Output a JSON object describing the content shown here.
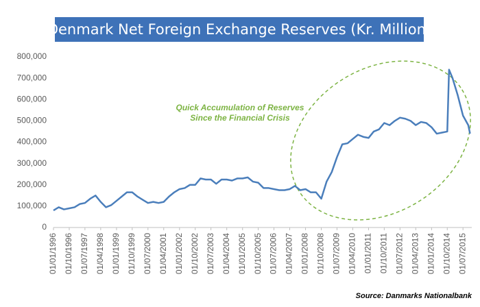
{
  "chart_data": {
    "type": "line",
    "title": "Denmark Net Foreign Exchange Reserves (Kr. Million)",
    "annotation": [
      "Quick Accumulation of Reserves",
      "Since the Financial Crisis"
    ],
    "source": "Source: Danmarks Nationalbank",
    "color": "#4a7ebb",
    "x": [
      "01/01/1996",
      "01/04/1996",
      "01/07/1996",
      "01/10/1996",
      "01/01/1997",
      "01/04/1997",
      "01/07/1997",
      "01/10/1997",
      "01/01/1998",
      "01/04/1998",
      "01/07/1998",
      "01/10/1998",
      "01/01/1999",
      "01/04/1999",
      "01/07/1999",
      "01/10/1999",
      "01/01/2000",
      "01/04/2000",
      "01/07/2000",
      "01/10/2000",
      "01/01/2001",
      "01/04/2001",
      "01/07/2001",
      "01/10/2001",
      "01/01/2002",
      "01/04/2002",
      "01/07/2002",
      "01/10/2002",
      "01/01/2003",
      "01/04/2003",
      "01/07/2003",
      "01/10/2003",
      "01/01/2004",
      "01/04/2004",
      "01/07/2004",
      "01/10/2004",
      "01/01/2005",
      "01/04/2005",
      "01/07/2005",
      "01/10/2005",
      "01/01/2006",
      "01/04/2006",
      "01/07/2006",
      "01/10/2006",
      "01/01/2007",
      "01/04/2007",
      "01/07/2007",
      "01/10/2007",
      "01/01/2008",
      "01/04/2008",
      "01/07/2008",
      "01/10/2008",
      "01/01/2009",
      "01/04/2009",
      "01/07/2009",
      "01/10/2009",
      "01/01/2010",
      "01/04/2010",
      "01/07/2010",
      "01/10/2010",
      "01/01/2011",
      "01/04/2011",
      "01/07/2011",
      "01/10/2011",
      "01/01/2012",
      "01/04/2012",
      "01/07/2012",
      "01/10/2012",
      "01/01/2013",
      "01/04/2013",
      "01/07/2013",
      "01/10/2013",
      "01/01/2014",
      "01/04/2014",
      "01/07/2014",
      "01/10/2014",
      "01/11/2014",
      "01/01/2015",
      "01/04/2015",
      "01/07/2015",
      "01/10/2015",
      "01/11/2015"
    ],
    "values": [
      80000,
      95000,
      85000,
      90000,
      95000,
      110000,
      115000,
      135000,
      150000,
      120000,
      95000,
      105000,
      125000,
      145000,
      165000,
      165000,
      145000,
      130000,
      115000,
      120000,
      115000,
      120000,
      145000,
      165000,
      180000,
      185000,
      200000,
      200000,
      230000,
      225000,
      225000,
      205000,
      225000,
      225000,
      220000,
      230000,
      230000,
      235000,
      215000,
      210000,
      185000,
      185000,
      180000,
      175000,
      175000,
      180000,
      195000,
      175000,
      180000,
      165000,
      165000,
      135000,
      215000,
      260000,
      330000,
      390000,
      395000,
      415000,
      435000,
      425000,
      420000,
      450000,
      460000,
      490000,
      480000,
      500000,
      515000,
      510000,
      500000,
      480000,
      495000,
      490000,
      470000,
      440000,
      445000,
      450000,
      740000,
      700000,
      620000,
      525000,
      480000,
      440000
    ],
    "xlim": [
      "01/01/1996",
      "01/12/2015"
    ],
    "xticks": [
      "01/01/1996",
      "01/10/1996",
      "01/07/1997",
      "01/04/1998",
      "01/01/1999",
      "01/10/1999",
      "01/07/2000",
      "01/04/2001",
      "01/01/2002",
      "01/10/2002",
      "01/07/2003",
      "01/04/2004",
      "01/01/2005",
      "01/10/2005",
      "01/07/2006",
      "01/04/2007",
      "01/01/2008",
      "01/10/2008",
      "01/07/2009",
      "01/04/2010",
      "01/01/2011",
      "01/10/2011",
      "01/07/2012",
      "01/04/2013",
      "01/01/2014",
      "01/10/2014",
      "01/07/2015"
    ],
    "ylim": [
      0,
      800000
    ],
    "yticks": [
      0,
      {
        "value": 100000,
        "label": "100,000"
      },
      {
        "value": 200000,
        "label": "200,000"
      },
      {
        "value": 300000,
        "label": "300,000"
      },
      {
        "value": 400000,
        "label": "400,000"
      },
      {
        "value": 500000,
        "label": "500,000"
      },
      {
        "value": 600000,
        "label": "600,000"
      },
      {
        "value": 700000,
        "label": "700,000"
      },
      {
        "value": 800000,
        "label": "800,000"
      }
    ],
    "grid": false
  }
}
